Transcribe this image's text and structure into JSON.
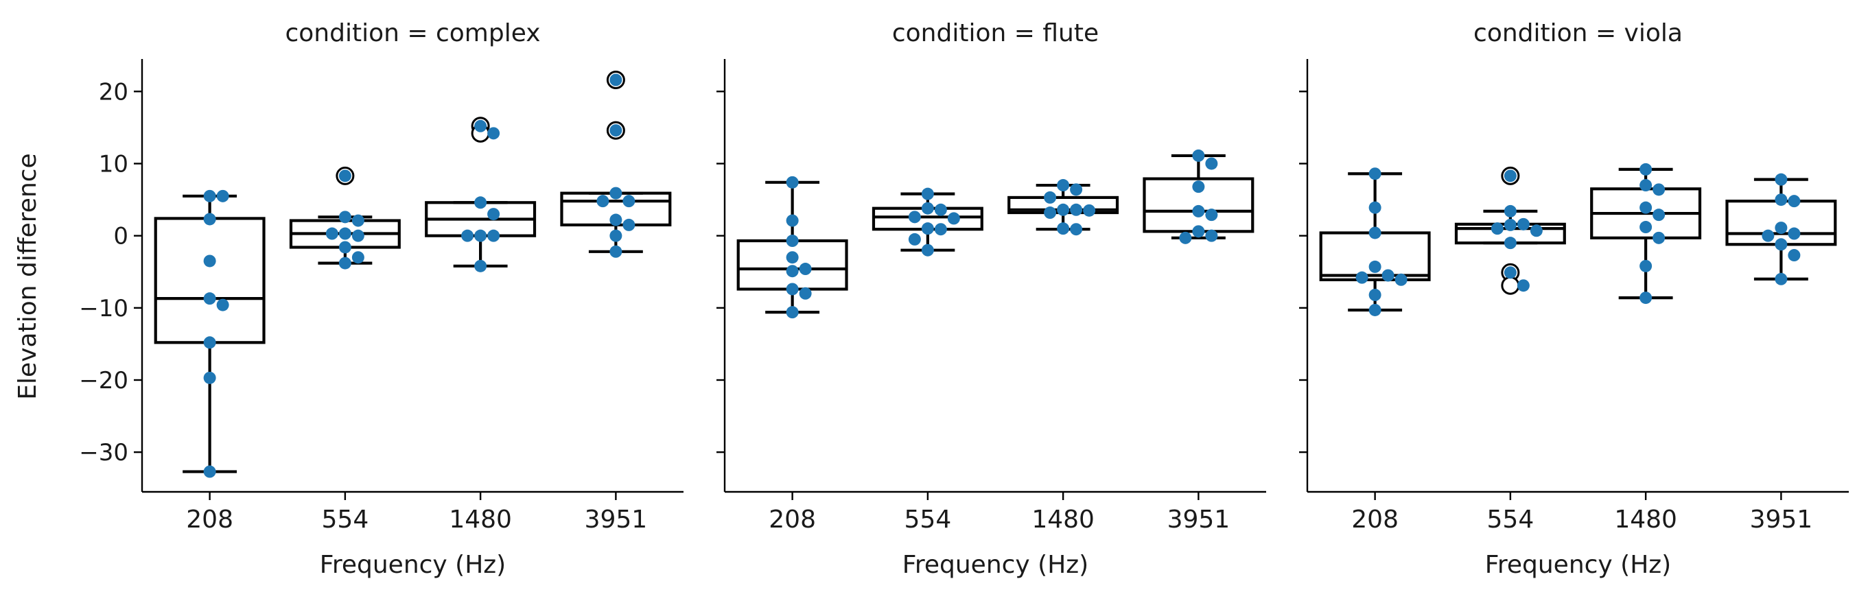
{
  "figure": {
    "y_label": "Elevation difference",
    "y_ticks": [
      -30,
      -20,
      -10,
      0,
      10,
      20
    ],
    "point_color": "#1f77b4",
    "box_line_color": "#000000"
  },
  "chart_data": [
    {
      "type": "box",
      "title": "condition = complex",
      "xlabel": "Frequency (Hz)",
      "ylabel": "Elevation difference",
      "ylim": [
        -35.5,
        24.5
      ],
      "categories": [
        "208",
        "554",
        "1480",
        "3951"
      ],
      "boxes": [
        {
          "whisker_low": -32.7,
          "q1": -14.8,
          "median": -8.7,
          "q3": 2.4,
          "whisker_high": 5.5,
          "outliers": []
        },
        {
          "whisker_low": -3.8,
          "q1": -1.6,
          "median": 0.3,
          "q3": 2.1,
          "whisker_high": 2.6,
          "outliers": [
            8.3
          ]
        },
        {
          "whisker_low": -4.2,
          "q1": 0.0,
          "median": 2.3,
          "q3": 4.6,
          "whisker_high": 4.6,
          "outliers": [
            15.2,
            14.2
          ]
        },
        {
          "whisker_low": -2.2,
          "q1": 1.5,
          "median": 4.8,
          "q3": 5.9,
          "whisker_high": 5.9,
          "outliers": [
            21.6,
            14.6
          ]
        }
      ],
      "points": [
        [
          5.5,
          5.5,
          2.3,
          -3.5,
          -8.7,
          -9.6,
          -14.8,
          -19.7,
          -32.7
        ],
        [
          8.3,
          2.6,
          2.1,
          0.3,
          0.3,
          0.0,
          -1.6,
          -3.0,
          -3.8
        ],
        [
          15.2,
          14.2,
          4.6,
          3.0,
          0.0,
          0.0,
          0.0,
          -4.2
        ],
        [
          21.6,
          14.6,
          5.9,
          4.8,
          4.8,
          2.2,
          1.5,
          0.0,
          -2.2
        ]
      ]
    },
    {
      "type": "box",
      "title": "condition = flute",
      "xlabel": "Frequency (Hz)",
      "ylabel": "",
      "ylim": [
        -35.5,
        24.5
      ],
      "categories": [
        "208",
        "554",
        "1480",
        "3951"
      ],
      "boxes": [
        {
          "whisker_low": -10.6,
          "q1": -7.4,
          "median": -4.6,
          "q3": -0.7,
          "whisker_high": 7.4,
          "outliers": []
        },
        {
          "whisker_low": -2.0,
          "q1": 0.9,
          "median": 2.6,
          "q3": 3.8,
          "whisker_high": 5.8,
          "outliers": []
        },
        {
          "whisker_low": 0.9,
          "q1": 3.2,
          "median": 3.6,
          "q3": 5.3,
          "whisker_high": 7.0,
          "outliers": []
        },
        {
          "whisker_low": -0.3,
          "q1": 0.6,
          "median": 3.4,
          "q3": 7.9,
          "whisker_high": 11.1,
          "outliers": []
        }
      ],
      "points": [
        [
          7.4,
          2.1,
          -0.7,
          -3.0,
          -4.6,
          -4.9,
          -7.4,
          -8.0,
          -10.6
        ],
        [
          5.8,
          3.8,
          3.6,
          2.6,
          2.4,
          1.0,
          0.9,
          -0.5,
          -2.0
        ],
        [
          7.0,
          6.4,
          5.3,
          3.6,
          3.6,
          3.5,
          3.2,
          1.0,
          0.9
        ],
        [
          11.1,
          10.0,
          6.8,
          3.4,
          2.9,
          0.6,
          0.0,
          -0.3
        ]
      ]
    },
    {
      "type": "box",
      "title": "condition = viola",
      "xlabel": "Frequency (Hz)",
      "ylabel": "",
      "ylim": [
        -35.5,
        24.5
      ],
      "categories": [
        "208",
        "554",
        "1480",
        "3951"
      ],
      "boxes": [
        {
          "whisker_low": -10.3,
          "q1": -6.1,
          "median": -5.5,
          "q3": 0.4,
          "whisker_high": 8.6,
          "outliers": []
        },
        {
          "whisker_low": -1.0,
          "q1": -1.0,
          "median": 1.0,
          "q3": 1.6,
          "whisker_high": 3.4,
          "outliers": [
            8.3,
            -5.1,
            -6.9
          ]
        },
        {
          "whisker_low": -8.6,
          "q1": -0.3,
          "median": 3.1,
          "q3": 6.5,
          "whisker_high": 9.2,
          "outliers": []
        },
        {
          "whisker_low": -6.0,
          "q1": -1.2,
          "median": 0.3,
          "q3": 4.8,
          "whisker_high": 7.8,
          "outliers": []
        }
      ],
      "points": [
        [
          8.6,
          3.9,
          0.4,
          -4.3,
          -5.5,
          -5.8,
          -6.1,
          -8.2,
          -10.3
        ],
        [
          8.3,
          3.4,
          1.6,
          1.5,
          1.0,
          0.7,
          -1.0,
          -5.1,
          -6.9
        ],
        [
          9.2,
          7.0,
          6.4,
          3.9,
          2.9,
          1.2,
          -0.3,
          -4.2,
          -8.6
        ],
        [
          7.8,
          5.0,
          4.8,
          1.1,
          0.3,
          0.0,
          -1.2,
          -2.7,
          -6.0
        ]
      ]
    }
  ]
}
